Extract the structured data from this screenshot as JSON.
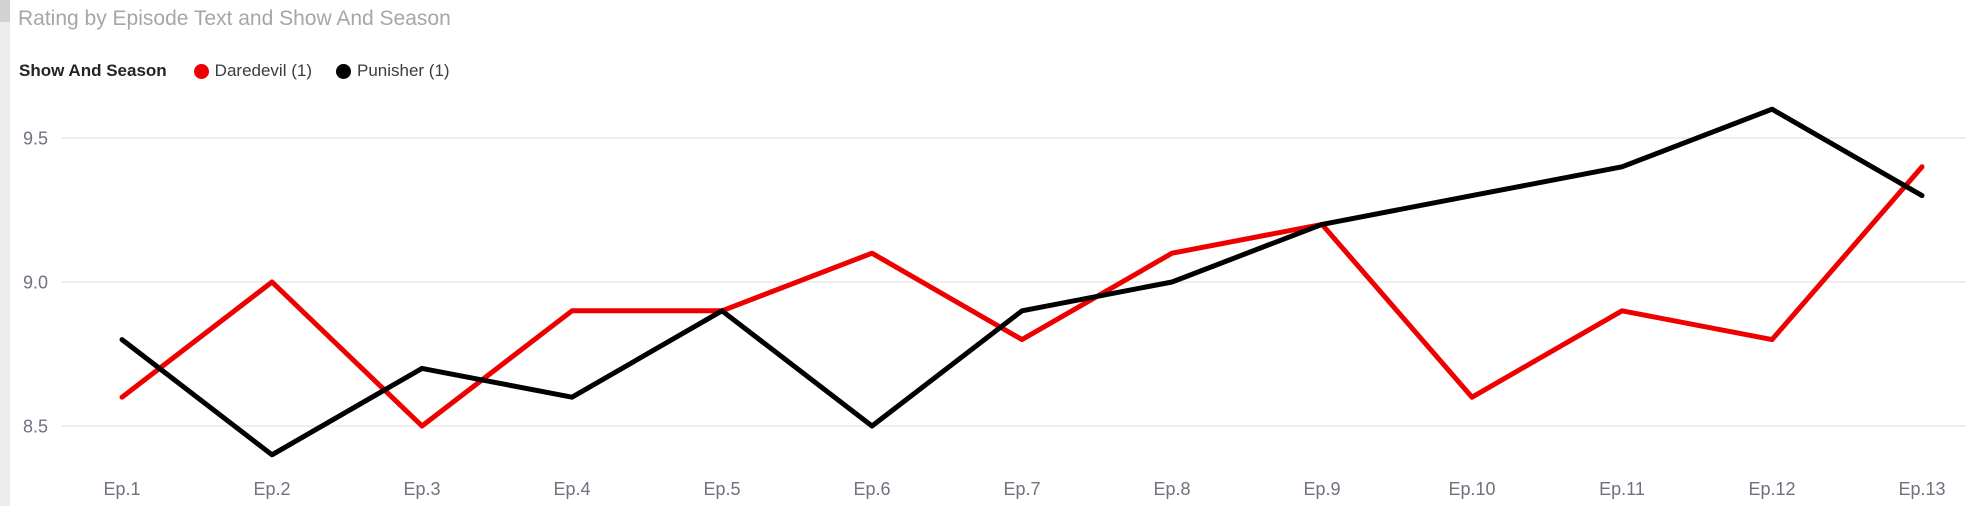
{
  "title": "Rating by Episode Text and Show And Season",
  "legend": {
    "title": "Show And Season",
    "items": [
      {
        "label": "Daredevil (1)",
        "color": "#ee0000"
      },
      {
        "label": "Punisher (1)",
        "color": "#000000"
      }
    ]
  },
  "y_axis": {
    "tick_labels": [
      "9.5",
      "9.0",
      "8.5"
    ],
    "tick_values": [
      9.5,
      9.0,
      8.5
    ]
  },
  "x_axis": {
    "tick_labels": [
      "Ep.1",
      "Ep.2",
      "Ep.3",
      "Ep.4",
      "Ep.5",
      "Ep.6",
      "Ep.7",
      "Ep.8",
      "Ep.9",
      "Ep.10",
      "Ep.11",
      "Ep.12",
      "Ep.13"
    ]
  },
  "colors": {
    "grid": "#e8e8e8",
    "title_text": "#a6a6a6",
    "axis_text": "#6e727c"
  },
  "chart_data": {
    "type": "line",
    "title": "Rating by Episode Text and Show And Season",
    "categories": [
      "Ep.1",
      "Ep.2",
      "Ep.3",
      "Ep.4",
      "Ep.5",
      "Ep.6",
      "Ep.7",
      "Ep.8",
      "Ep.9",
      "Ep.10",
      "Ep.11",
      "Ep.12",
      "Ep.13"
    ],
    "series": [
      {
        "name": "Daredevil (1)",
        "color": "#ee0000",
        "values": [
          8.6,
          9.0,
          8.5,
          8.9,
          8.9,
          9.1,
          8.8,
          9.1,
          9.2,
          8.6,
          8.9,
          8.8,
          9.4
        ]
      },
      {
        "name": "Punisher (1)",
        "color": "#000000",
        "values": [
          8.8,
          8.4,
          8.7,
          8.6,
          8.9,
          8.5,
          8.9,
          9.0,
          9.2,
          9.3,
          9.4,
          9.6,
          9.3
        ]
      }
    ],
    "xlabel": "",
    "ylabel": "",
    "ylim": [
      8.35,
      9.65
    ],
    "y_ticks": [
      8.5,
      9.0,
      9.5
    ],
    "grid": true,
    "legend_position": "top",
    "legend_title": "Show And Season"
  }
}
